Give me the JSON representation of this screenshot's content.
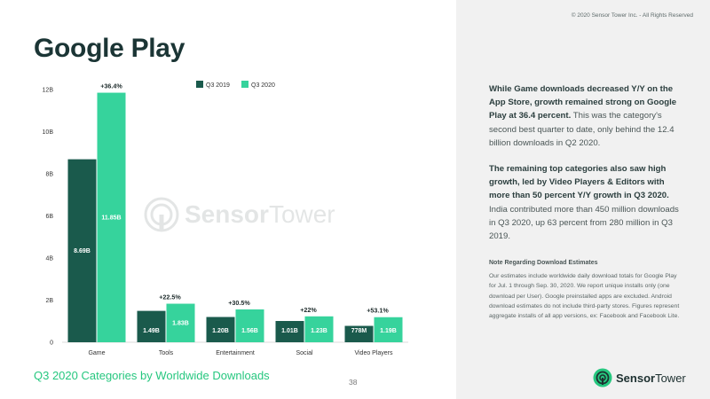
{
  "header": {
    "copyright": "© 2020 Sensor Tower Inc. - All Rights Reserved",
    "title": "Google Play",
    "page_number": "38"
  },
  "footer": {
    "subtitle": "Q3 2020 Categories by Worldwide Downloads"
  },
  "brand": {
    "name_bold": "Sensor",
    "name_light": "Tower",
    "colors": {
      "dark": "#1a5a4c",
      "light": "#36d39c",
      "accent": "#26c77f"
    },
    "icon": "sensortower-logo-icon"
  },
  "commentary": {
    "p1_bold": "While Game downloads decreased Y/Y on the App Store, growth remained strong on Google Play at 36.4 percent.",
    "p1_rest": " This was the category's second best quarter to date, only behind the 12.4 billion downloads in Q2 2020.",
    "p2_bold": "The remaining top categories also saw high growth, led by Video Players & Editors with more than 50 percent Y/Y growth in Q3 2020.",
    "p2_rest": " India contributed more than 450 million downloads in Q3 2020, up 63 percent from 280 million in Q3 2019.",
    "note_title": "Note Regarding Download Estimates",
    "note_text": "Our estimates include worldwide daily download totals for Google Play for Jul. 1 through Sep. 30, 2020. We report unique installs only (one download per User). Google preinstalled apps are excluded. Android download estimates do not include third-party stores. Figures represent aggregate installs of all app versions, ex: Facebook and Facebook Lite."
  },
  "chart_data": {
    "type": "bar",
    "categories": [
      "Game",
      "Tools",
      "Entertainment",
      "Social",
      "Video Players"
    ],
    "series": [
      {
        "name": "Q3 2019",
        "color": "#1a5a4c",
        "values": [
          8.69,
          1.49,
          1.2,
          1.01,
          0.778
        ],
        "labels": [
          "8.69B",
          "1.49B",
          "1.20B",
          "1.01B",
          "778M"
        ]
      },
      {
        "name": "Q3 2020",
        "color": "#36d39c",
        "values": [
          11.85,
          1.83,
          1.56,
          1.23,
          1.19
        ],
        "labels": [
          "11.85B",
          "1.83B",
          "1.56B",
          "1.23B",
          "1.19B"
        ]
      }
    ],
    "growth_labels": [
      "+36.4%",
      "+22.5%",
      "+30.5%",
      "+22%",
      "+53.1%"
    ],
    "y_ticks": [
      0,
      2,
      4,
      6,
      8,
      10,
      12
    ],
    "y_tick_labels": [
      "0",
      "2B",
      "4B",
      "6B",
      "8B",
      "10B",
      "12B"
    ],
    "ylim": [
      0,
      12
    ],
    "grid": false,
    "legend": "top-center"
  }
}
